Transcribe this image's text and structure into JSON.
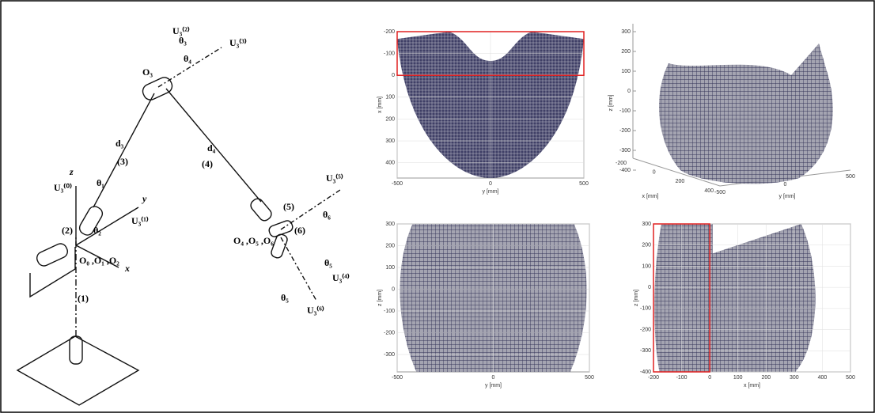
{
  "diagram": {
    "labels": [
      "(1)",
      "(2)",
      "(3)",
      "(4)",
      "(5)",
      "(6)",
      "z",
      "y",
      "x",
      "d₃",
      "d₄",
      "O₃",
      "O₀ ,O₁ ,O₂",
      "O₄ ,O₅ ,O₆",
      "θ₁",
      "θ₂",
      "θ₃",
      "θ₄",
      "θ₅",
      "θ₆",
      "θ₅",
      "U₃⁽⁰⁾",
      "U₃⁽¹⁾",
      "U₃⁽²⁾",
      "U₃⁽³⁾",
      "U₃⁽⁵⁾",
      "U₃⁽⁴⁾",
      "U₃⁽⁶⁾"
    ]
  },
  "plots": [
    {
      "xlabel": "y [mm]",
      "ylabel": "x [mm]",
      "xlim": [
        -500,
        500
      ],
      "ylim": [
        -200,
        470
      ],
      "xticks": [
        -500,
        0,
        500
      ],
      "yticks": [
        -200,
        -100,
        0,
        100,
        200,
        300,
        400
      ],
      "y_inverted": true,
      "highlight": {
        "x": [
          -500,
          500
        ],
        "y": [
          -200,
          0
        ]
      }
    },
    {
      "xlabel": "x [mm]",
      "ylabel": "y [mm]",
      "zlabel": "z [mm]",
      "xlim": [
        -200,
        400
      ],
      "ylim": [
        -500,
        500
      ],
      "zlim": [
        -400,
        300
      ],
      "xticks": [
        -200,
        0,
        200,
        400
      ],
      "yticks": [
        -500,
        0,
        500
      ],
      "zticks": [
        300,
        200,
        100,
        0,
        -100,
        -200,
        -300,
        -400
      ]
    },
    {
      "xlabel": "y [mm]",
      "ylabel": "z [mm]",
      "xlim": [
        -500,
        500
      ],
      "ylim": [
        -380,
        300
      ],
      "xticks": [
        -500,
        0,
        500
      ],
      "yticks": [
        300,
        200,
        100,
        0,
        -100,
        -200,
        -300
      ]
    },
    {
      "xlabel": "x [mm]",
      "ylabel": "z [mm]",
      "xlim": [
        -200,
        500
      ],
      "ylim": [
        -400,
        300
      ],
      "xticks": [
        -200,
        -100,
        0,
        100,
        200,
        300,
        400,
        500
      ],
      "yticks": [
        300,
        200,
        100,
        0,
        -100,
        -200,
        -300,
        -400
      ],
      "highlight": {
        "x": [
          -200,
          0
        ],
        "y": [
          -400,
          300
        ]
      }
    }
  ]
}
